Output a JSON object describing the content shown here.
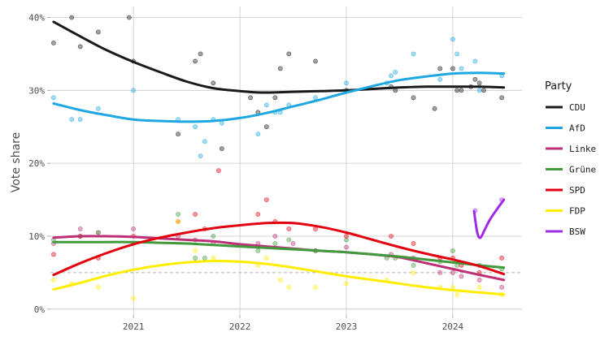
{
  "chart_data": {
    "type": "scatter",
    "title": "",
    "xlabel": "",
    "ylabel": "Vote share",
    "x_ticks": [
      "2021",
      "2022",
      "2023",
      "2024"
    ],
    "y_ticks": [
      "0%",
      "10%",
      "20%",
      "30%",
      "40%"
    ],
    "xlim": [
      2020.22,
      2024.65
    ],
    "ylim": [
      -0.8,
      41.5
    ],
    "reference_line": 5,
    "grid": true,
    "legend_title": "Party",
    "legend_position": "right",
    "series": [
      {
        "name": "CDU",
        "color": "#1a1a1a",
        "trend": [
          [
            2020.25,
            39.4
          ],
          [
            2020.5,
            37.4
          ],
          [
            2020.75,
            35.5
          ],
          [
            2021.0,
            33.9
          ],
          [
            2021.25,
            32.5
          ],
          [
            2021.5,
            31.2
          ],
          [
            2021.75,
            30.3
          ],
          [
            2022.0,
            29.9
          ],
          [
            2022.2,
            29.7
          ],
          [
            2022.5,
            29.8
          ],
          [
            2022.75,
            29.9
          ],
          [
            2023.0,
            30.0
          ],
          [
            2023.25,
            30.2
          ],
          [
            2023.5,
            30.4
          ],
          [
            2023.75,
            30.5
          ],
          [
            2024.0,
            30.5
          ],
          [
            2024.25,
            30.5
          ],
          [
            2024.48,
            30.4
          ]
        ],
        "points": [
          [
            2020.25,
            36.5
          ],
          [
            2020.42,
            40
          ],
          [
            2020.5,
            36
          ],
          [
            2020.67,
            38
          ],
          [
            2020.96,
            40
          ],
          [
            2021.0,
            34
          ],
          [
            2021.42,
            24
          ],
          [
            2021.58,
            34
          ],
          [
            2021.63,
            35
          ],
          [
            2021.75,
            31
          ],
          [
            2021.83,
            22
          ],
          [
            2022.1,
            29
          ],
          [
            2022.17,
            27
          ],
          [
            2022.25,
            25
          ],
          [
            2022.33,
            29
          ],
          [
            2022.38,
            33
          ],
          [
            2022.46,
            35
          ],
          [
            2022.71,
            34
          ],
          [
            2023.0,
            30
          ],
          [
            2023.42,
            30.5
          ],
          [
            2023.46,
            30
          ],
          [
            2023.63,
            29
          ],
          [
            2023.83,
            27.5
          ],
          [
            2023.88,
            33
          ],
          [
            2024.0,
            33
          ],
          [
            2024.04,
            30
          ],
          [
            2024.08,
            30
          ],
          [
            2024.17,
            30.5
          ],
          [
            2024.21,
            31.5
          ],
          [
            2024.25,
            31
          ],
          [
            2024.29,
            30
          ],
          [
            2024.46,
            29
          ]
        ]
      },
      {
        "name": "AfD",
        "color": "#1ea7e1",
        "trend": [
          [
            2020.25,
            28.2
          ],
          [
            2020.5,
            27.3
          ],
          [
            2020.75,
            26.6
          ],
          [
            2021.0,
            26.0
          ],
          [
            2021.25,
            25.8
          ],
          [
            2021.5,
            25.7
          ],
          [
            2021.75,
            25.8
          ],
          [
            2022.0,
            26.2
          ],
          [
            2022.25,
            26.9
          ],
          [
            2022.5,
            27.8
          ],
          [
            2022.75,
            28.7
          ],
          [
            2023.0,
            29.7
          ],
          [
            2023.25,
            30.6
          ],
          [
            2023.5,
            31.4
          ],
          [
            2023.75,
            31.9
          ],
          [
            2024.0,
            32.3
          ],
          [
            2024.25,
            32.4
          ],
          [
            2024.48,
            32.3
          ]
        ],
        "points": [
          [
            2020.25,
            29
          ],
          [
            2020.42,
            26
          ],
          [
            2020.5,
            26
          ],
          [
            2020.67,
            27.5
          ],
          [
            2021.0,
            30
          ],
          [
            2021.42,
            26
          ],
          [
            2021.58,
            25
          ],
          [
            2021.63,
            21
          ],
          [
            2021.67,
            23
          ],
          [
            2021.75,
            26
          ],
          [
            2021.83,
            25.5
          ],
          [
            2022.17,
            24
          ],
          [
            2022.25,
            28
          ],
          [
            2022.33,
            27
          ],
          [
            2022.38,
            27
          ],
          [
            2022.46,
            28
          ],
          [
            2022.71,
            29
          ],
          [
            2023.0,
            31
          ],
          [
            2023.38,
            31
          ],
          [
            2023.42,
            32
          ],
          [
            2023.46,
            32.5
          ],
          [
            2023.63,
            35
          ],
          [
            2023.88,
            31.5
          ],
          [
            2024.0,
            37
          ],
          [
            2024.04,
            35
          ],
          [
            2024.08,
            33
          ],
          [
            2024.21,
            34
          ],
          [
            2024.25,
            30
          ],
          [
            2024.46,
            32
          ]
        ]
      },
      {
        "name": "Linke",
        "color": "#be3075",
        "trend": [
          [
            2020.25,
            9.8
          ],
          [
            2020.5,
            10.0
          ],
          [
            2020.75,
            10.0
          ],
          [
            2021.0,
            9.9
          ],
          [
            2021.25,
            9.7
          ],
          [
            2021.5,
            9.5
          ],
          [
            2021.75,
            9.3
          ],
          [
            2022.0,
            8.9
          ],
          [
            2022.25,
            8.6
          ],
          [
            2022.5,
            8.3
          ],
          [
            2022.75,
            8.0
          ],
          [
            2023.0,
            7.8
          ],
          [
            2023.25,
            7.5
          ],
          [
            2023.5,
            7.1
          ],
          [
            2023.75,
            6.3
          ],
          [
            2024.0,
            5.5
          ],
          [
            2024.25,
            4.7
          ],
          [
            2024.48,
            4.0
          ]
        ],
        "points": [
          [
            2020.25,
            9
          ],
          [
            2020.5,
            11
          ],
          [
            2020.67,
            10.5
          ],
          [
            2021.0,
            11
          ],
          [
            2021.42,
            10
          ],
          [
            2021.58,
            9.5
          ],
          [
            2021.75,
            9
          ],
          [
            2022.17,
            9
          ],
          [
            2022.33,
            10
          ],
          [
            2022.5,
            9
          ],
          [
            2022.71,
            8
          ],
          [
            2023.0,
            8.5
          ],
          [
            2023.42,
            7.5
          ],
          [
            2023.63,
            7
          ],
          [
            2023.88,
            5
          ],
          [
            2024.0,
            5
          ],
          [
            2024.08,
            4.5
          ],
          [
            2024.25,
            4
          ],
          [
            2024.46,
            3
          ]
        ]
      },
      {
        "name": "Grüne",
        "color": "#409a3c",
        "trend": [
          [
            2020.25,
            9.2
          ],
          [
            2020.5,
            9.2
          ],
          [
            2020.75,
            9.2
          ],
          [
            2021.0,
            9.2
          ],
          [
            2021.25,
            9.1
          ],
          [
            2021.5,
            9.0
          ],
          [
            2021.75,
            8.8
          ],
          [
            2022.0,
            8.6
          ],
          [
            2022.25,
            8.4
          ],
          [
            2022.5,
            8.2
          ],
          [
            2022.75,
            8.0
          ],
          [
            2023.0,
            7.8
          ],
          [
            2023.25,
            7.5
          ],
          [
            2023.5,
            7.2
          ],
          [
            2023.75,
            6.8
          ],
          [
            2024.0,
            6.4
          ],
          [
            2024.25,
            6.0
          ],
          [
            2024.48,
            5.7
          ]
        ],
        "points": [
          [
            2020.25,
            9.5
          ],
          [
            2020.5,
            10
          ],
          [
            2020.67,
            10.5
          ],
          [
            2021.0,
            9
          ],
          [
            2021.42,
            13
          ],
          [
            2021.58,
            7
          ],
          [
            2021.67,
            7
          ],
          [
            2021.75,
            10
          ],
          [
            2022.17,
            8
          ],
          [
            2022.33,
            9
          ],
          [
            2022.46,
            9.5
          ],
          [
            2022.71,
            8
          ],
          [
            2023.0,
            9.5
          ],
          [
            2023.38,
            7
          ],
          [
            2023.46,
            7
          ],
          [
            2023.63,
            6
          ],
          [
            2023.88,
            6.5
          ],
          [
            2024.0,
            8
          ],
          [
            2024.04,
            6
          ],
          [
            2024.25,
            6
          ],
          [
            2024.46,
            5.5
          ]
        ]
      },
      {
        "name": "SPD",
        "color": "#e3000f",
        "trend": [
          [
            2020.25,
            4.7
          ],
          [
            2020.5,
            6.3
          ],
          [
            2020.75,
            7.7
          ],
          [
            2021.0,
            8.9
          ],
          [
            2021.25,
            9.8
          ],
          [
            2021.5,
            10.5
          ],
          [
            2021.75,
            11.1
          ],
          [
            2022.0,
            11.5
          ],
          [
            2022.25,
            11.8
          ],
          [
            2022.5,
            11.8
          ],
          [
            2022.75,
            11.3
          ],
          [
            2023.0,
            10.5
          ],
          [
            2023.25,
            9.5
          ],
          [
            2023.5,
            8.5
          ],
          [
            2023.75,
            7.6
          ],
          [
            2024.0,
            6.8
          ],
          [
            2024.25,
            5.9
          ],
          [
            2024.48,
            4.8
          ]
        ],
        "points": [
          [
            2020.25,
            7.5
          ],
          [
            2020.5,
            10
          ],
          [
            2020.67,
            7
          ],
          [
            2021.0,
            10
          ],
          [
            2021.42,
            12
          ],
          [
            2021.58,
            13
          ],
          [
            2021.67,
            11
          ],
          [
            2021.8,
            19
          ],
          [
            2022.17,
            13
          ],
          [
            2022.25,
            15
          ],
          [
            2022.33,
            12
          ],
          [
            2022.46,
            11
          ],
          [
            2022.71,
            11
          ],
          [
            2023.0,
            10
          ],
          [
            2023.42,
            10
          ],
          [
            2023.63,
            9
          ],
          [
            2023.88,
            7
          ],
          [
            2024.0,
            7
          ],
          [
            2024.08,
            6
          ],
          [
            2024.25,
            5
          ],
          [
            2024.46,
            7
          ]
        ]
      },
      {
        "name": "FDP",
        "color": "#ffed00",
        "trend": [
          [
            2020.25,
            2.7
          ],
          [
            2020.5,
            3.6
          ],
          [
            2020.75,
            4.6
          ],
          [
            2021.0,
            5.4
          ],
          [
            2021.25,
            6.0
          ],
          [
            2021.5,
            6.4
          ],
          [
            2021.75,
            6.6
          ],
          [
            2022.0,
            6.5
          ],
          [
            2022.25,
            6.2
          ],
          [
            2022.5,
            5.7
          ],
          [
            2022.75,
            5.1
          ],
          [
            2023.0,
            4.5
          ],
          [
            2023.25,
            4.0
          ],
          [
            2023.5,
            3.5
          ],
          [
            2023.75,
            3.0
          ],
          [
            2024.0,
            2.6
          ],
          [
            2024.25,
            2.3
          ],
          [
            2024.48,
            2.0
          ]
        ],
        "points": [
          [
            2020.25,
            4
          ],
          [
            2020.42,
            3.5
          ],
          [
            2020.67,
            3
          ],
          [
            2021.0,
            1.5
          ],
          [
            2021.42,
            12
          ],
          [
            2021.58,
            8
          ],
          [
            2021.75,
            7
          ],
          [
            2022.17,
            6
          ],
          [
            2022.25,
            7
          ],
          [
            2022.38,
            4
          ],
          [
            2022.46,
            3
          ],
          [
            2022.71,
            3
          ],
          [
            2023.0,
            3.5
          ],
          [
            2023.38,
            4
          ],
          [
            2023.63,
            5
          ],
          [
            2023.88,
            3
          ],
          [
            2024.0,
            3
          ],
          [
            2024.04,
            2
          ],
          [
            2024.25,
            3
          ],
          [
            2024.46,
            2
          ]
        ]
      },
      {
        "name": "BSW",
        "color": "#a02be4",
        "trend": [
          [
            2024.2,
            13.4
          ],
          [
            2024.23,
            10.5
          ],
          [
            2024.26,
            9.8
          ],
          [
            2024.3,
            10.9
          ],
          [
            2024.35,
            12.3
          ],
          [
            2024.42,
            13.8
          ],
          [
            2024.48,
            15.0
          ]
        ],
        "points": [
          [
            2024.21,
            13.5
          ],
          [
            2024.46,
            15
          ]
        ]
      }
    ]
  }
}
